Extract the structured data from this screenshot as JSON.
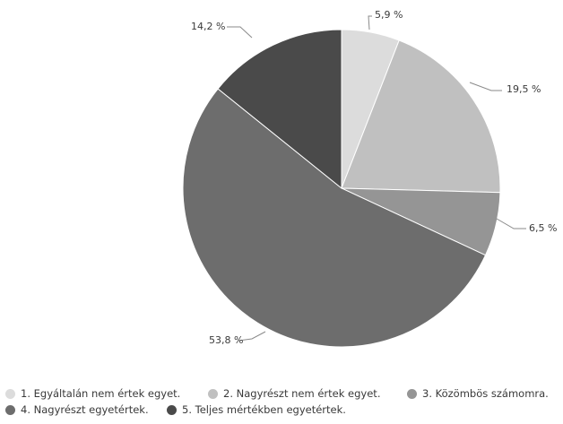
{
  "chart_data": {
    "type": "pie",
    "categories": [
      "1. Egyáltalán nem értek egyet.",
      "2. Nagyrészt nem értek egyet.",
      "3. Közömbös számomra.",
      "4. Nagyrészt egyetértek.",
      "5. Teljes mértékben egyetértek."
    ],
    "values": [
      5.9,
      19.5,
      6.5,
      53.8,
      14.2
    ],
    "value_labels": [
      "5,9 %",
      "19,5 %",
      "6,5 %",
      "53,8 %",
      "14,2 %"
    ],
    "colors": [
      "#dcdcdc",
      "#c0c0c0",
      "#959595",
      "#6d6d6d",
      "#4a4a4a"
    ],
    "legend_position": "bottom"
  }
}
